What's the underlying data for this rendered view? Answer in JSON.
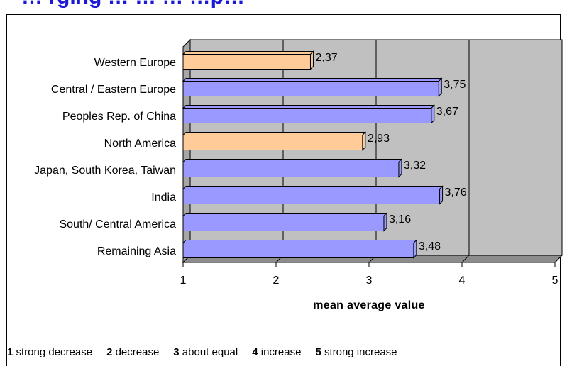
{
  "title": "… rging … … … …p…",
  "chart_data": {
    "type": "bar",
    "orientation": "horizontal",
    "categories": [
      "Western Europe",
      "Central / Eastern Europe",
      "Peoples Rep. of China",
      "North America",
      "Japan, South Korea, Taiwan",
      "India",
      "South/ Central America",
      "Remaining Asia"
    ],
    "values": [
      2.37,
      3.75,
      3.67,
      2.93,
      3.32,
      3.76,
      3.16,
      3.48
    ],
    "value_labels": [
      "2,37",
      "3,75",
      "3,67",
      "2,93",
      "3,32",
      "3,76",
      "3,16",
      "3,48"
    ],
    "highlight": [
      true,
      false,
      false,
      true,
      false,
      false,
      false,
      false
    ],
    "xlim": [
      1,
      5
    ],
    "xticks": [
      "1",
      "2",
      "3",
      "4",
      "5"
    ],
    "xlabel": "mean average value",
    "ylabel": "",
    "grid": true,
    "colors": {
      "bar_default": "#9999ff",
      "bar_highlight": "#ffcc99",
      "plot_background": "#c0c0c0",
      "bar_edge": "#000000"
    }
  },
  "legend": [
    {
      "key": "1",
      "text": "strong decrease"
    },
    {
      "key": "2",
      "text": "decrease"
    },
    {
      "key": "3",
      "text": "about equal"
    },
    {
      "key": "4",
      "text": "increase"
    },
    {
      "key": "5",
      "text": "strong increase"
    }
  ]
}
